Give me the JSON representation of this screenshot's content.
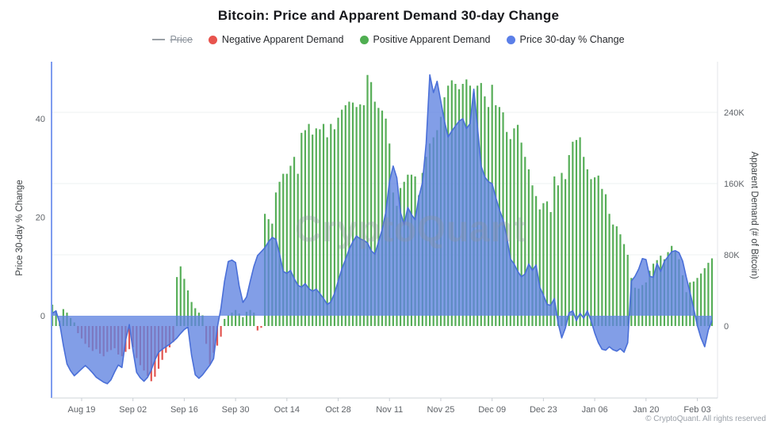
{
  "title": "Bitcoin: Price and Apparent Demand 30-day Change",
  "watermark": "CryptoQuant",
  "footer": "© CryptoQuant. All rights reserved",
  "legend": {
    "items": [
      {
        "label": "Price",
        "marker": "line",
        "color": "#9aa0a6",
        "disabled": true
      },
      {
        "label": "Negative Apparent Demand",
        "marker": "dot",
        "color": "#e8544e",
        "disabled": false
      },
      {
        "label": "Positive Apparent Demand",
        "marker": "dot",
        "color": "#4fae51",
        "disabled": false
      },
      {
        "label": "Price 30-day % Change",
        "marker": "dot",
        "color": "#5b7fe8",
        "disabled": false
      }
    ]
  },
  "chart_data": {
    "type": "mixed",
    "sampling": "daily",
    "x": {
      "start_label": "Aug 11",
      "end_label": "Feb 07",
      "points": 181,
      "tick_labels": [
        "Aug 19",
        "Sep 02",
        "Sep 16",
        "Sep 30",
        "Oct 14",
        "Oct 28",
        "Nov 11",
        "Nov 25",
        "Dec 09",
        "Dec 23",
        "Jan 06",
        "Jan 20",
        "Feb 03"
      ],
      "tick_indices": [
        8,
        22,
        36,
        50,
        64,
        78,
        92,
        106,
        120,
        134,
        148,
        162,
        176
      ]
    },
    "left_axis": {
      "title": "Price 30-day % Change",
      "tick_values": [
        0,
        20,
        40
      ],
      "range": [
        -16,
        52
      ]
    },
    "right_axis": {
      "title": "Apparent Demand (# of Bitcoin)",
      "tick_labels": [
        "0",
        "80K",
        "160K",
        "240K"
      ],
      "tick_values_k": [
        0,
        80,
        160,
        240
      ],
      "range_k": [
        -75,
        310
      ]
    },
    "series": [
      {
        "name": "Apparent Demand 30-day Change",
        "type": "bar",
        "axis": "right",
        "unit": "K BTC",
        "positive_color": "#57ae58",
        "negative_color": "#e25550",
        "values_k": [
          24,
          17,
          6,
          19,
          15,
          9,
          4,
          -8,
          -14,
          -20,
          -24,
          -28,
          -26,
          -31,
          -34,
          -29,
          -27,
          -25,
          -32,
          -34,
          -29,
          -26,
          -24,
          -36,
          -44,
          -50,
          -56,
          -62,
          -57,
          -48,
          -38,
          -30,
          -24,
          -18,
          55,
          67,
          53,
          40,
          27,
          20,
          15,
          12,
          -20,
          -43,
          -30,
          -22,
          -12,
          8,
          12,
          15,
          18,
          14,
          10,
          16,
          18,
          15,
          -5,
          -2,
          126,
          120,
          115,
          150,
          162,
          171,
          171,
          180,
          190,
          171,
          217,
          220,
          227,
          215,
          222,
          221,
          227,
          212,
          227,
          221,
          234,
          243,
          248,
          252,
          251,
          246,
          249,
          248,
          282,
          274,
          252,
          245,
          242,
          233,
          205,
          150,
          135,
          155,
          162,
          170,
          170,
          168,
          147,
          172,
          190,
          205,
          212,
          220,
          235,
          257,
          270,
          276,
          272,
          266,
          272,
          277,
          270,
          262,
          270,
          273,
          258,
          246,
          271,
          248,
          246,
          240,
          218,
          210,
          222,
          226,
          206,
          190,
          176,
          158,
          146,
          131,
          138,
          140,
          128,
          168,
          158,
          172,
          165,
          192,
          207,
          209,
          212,
          190,
          176,
          165,
          167,
          169,
          154,
          148,
          126,
          114,
          112,
          103,
          92,
          80,
          54,
          43,
          42,
          46,
          49,
          62,
          70,
          74,
          79,
          75,
          83,
          90,
          84,
          75,
          57,
          38,
          49,
          50,
          54,
          59,
          65,
          71,
          76
        ]
      },
      {
        "name": "Price 30-day % Change",
        "type": "area",
        "axis": "left",
        "unit": "%",
        "fill_color": "#5f83e0",
        "stroke_color": "#4a6fd8",
        "values_pct": [
          0.5,
          1.0,
          -1.5,
          -6.0,
          -9.8,
          -11.2,
          -12.2,
          -11.5,
          -10.8,
          -10.1,
          -10.8,
          -11.6,
          -12.5,
          -13.0,
          -13.5,
          -13.8,
          -13.0,
          -11.4,
          -10.0,
          -10.5,
          -5.0,
          -1.8,
          -7.0,
          -11.5,
          -12.6,
          -13.3,
          -12.5,
          -11.0,
          -9.0,
          -7.4,
          -6.8,
          -6.3,
          -5.8,
          -5.2,
          -4.5,
          -3.6,
          -2.8,
          -2.3,
          -8.0,
          -12.0,
          -12.7,
          -12.0,
          -11.0,
          -10.0,
          -8.7,
          -2.5,
          1.5,
          7.0,
          11.0,
          11.3,
          10.8,
          6.0,
          2.7,
          3.8,
          7.0,
          10.0,
          12.2,
          13.0,
          13.8,
          15.0,
          15.9,
          15.5,
          12.5,
          9.0,
          8.6,
          9.2,
          7.5,
          6.2,
          5.8,
          6.5,
          5.5,
          5.0,
          5.4,
          4.5,
          3.5,
          2.3,
          2.8,
          4.5,
          7.0,
          9.5,
          11.4,
          13.5,
          15.0,
          16.2,
          15.6,
          15.3,
          14.8,
          13.2,
          12.5,
          15.0,
          17.5,
          21.0,
          27.2,
          30.4,
          28.0,
          21.0,
          18.5,
          22.0,
          20.5,
          19.5,
          24.0,
          27.0,
          35.0,
          48.9,
          45.3,
          47.6,
          43.5,
          39.5,
          36.3,
          37.5,
          38.5,
          39.5,
          40.0,
          38.0,
          39.0,
          46.0,
          38.4,
          30.4,
          28.2,
          27.2,
          26.8,
          24.0,
          21.5,
          19.5,
          16.0,
          11.5,
          10.5,
          9.0,
          7.9,
          8.5,
          10.5,
          9.2,
          10.3,
          5.8,
          4.2,
          2.3,
          2.1,
          3.5,
          -1.5,
          -4.5,
          -2.5,
          0.6,
          1.0,
          -1.0,
          0.5,
          -0.5,
          1.0,
          -1.0,
          -3.5,
          -5.5,
          -6.8,
          -7.0,
          -6.3,
          -6.9,
          -7.2,
          -6.7,
          -7.4,
          -5.5,
          7.0,
          8.0,
          9.5,
          11.6,
          11.4,
          8.0,
          7.8,
          10.6,
          9.0,
          11.0,
          12.0,
          13.0,
          13.2,
          12.8,
          11.1,
          7.8,
          4.7,
          1.5,
          -2.0,
          -4.5,
          -6.3,
          -2.9,
          -1.0
        ]
      }
    ]
  }
}
